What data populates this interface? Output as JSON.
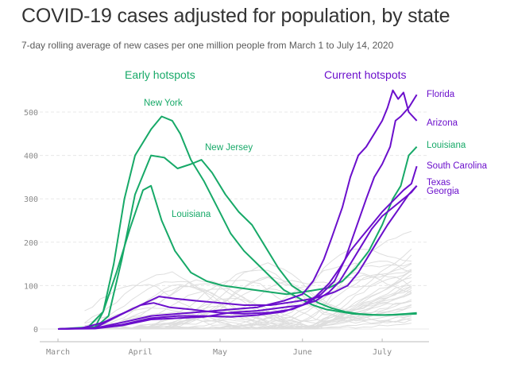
{
  "header": {
    "title": "COVID-19 cases adjusted for population, by state",
    "subtitle": "7-day rolling average of new cases per one million people from March 1 to July 14, 2020"
  },
  "groups": {
    "early": "Early hotspots",
    "current": "Current hotspots"
  },
  "colors": {
    "early": "#17a968",
    "current": "#6b0fcc",
    "background_states": "#dedede",
    "grid": "#e8e8e8",
    "axis": "#bbbbbb"
  },
  "chart_data": {
    "type": "line",
    "title": "COVID-19 cases adjusted for population, by state",
    "subtitle": "7-day rolling average of new cases per one million people from March 1 to July 14, 2020",
    "xlabel": "",
    "ylabel": "",
    "x_range": [
      "2020-03-01",
      "2020-07-14"
    ],
    "ylim": [
      0,
      550
    ],
    "y_ticks": [
      0,
      100,
      200,
      300,
      400,
      500
    ],
    "x_ticks": [
      {
        "date": "2020-03-01",
        "label": "March"
      },
      {
        "date": "2020-04-01",
        "label": "April"
      },
      {
        "date": "2020-05-01",
        "label": "May"
      },
      {
        "date": "2020-06-01",
        "label": "June"
      },
      {
        "date": "2020-07-01",
        "label": "July"
      }
    ],
    "grid": "horizontal dashed",
    "series": [
      {
        "name": "New York",
        "group": "early",
        "points": [
          [
            "2020-03-01",
            0
          ],
          [
            "2020-03-15",
            5
          ],
          [
            "2020-03-18",
            40
          ],
          [
            "2020-03-22",
            150
          ],
          [
            "2020-03-26",
            300
          ],
          [
            "2020-03-30",
            400
          ],
          [
            "2020-04-05",
            460
          ],
          [
            "2020-04-09",
            490
          ],
          [
            "2020-04-13",
            480
          ],
          [
            "2020-04-16",
            450
          ],
          [
            "2020-04-20",
            390
          ],
          [
            "2020-04-25",
            340
          ],
          [
            "2020-04-30",
            280
          ],
          [
            "2020-05-05",
            220
          ],
          [
            "2020-05-10",
            180
          ],
          [
            "2020-05-15",
            150
          ],
          [
            "2020-05-20",
            120
          ],
          [
            "2020-05-25",
            90
          ],
          [
            "2020-05-31",
            70
          ],
          [
            "2020-06-05",
            55
          ],
          [
            "2020-06-10",
            45
          ],
          [
            "2020-06-15",
            40
          ],
          [
            "2020-06-20",
            35
          ],
          [
            "2020-06-25",
            33
          ],
          [
            "2020-06-30",
            32
          ],
          [
            "2020-07-05",
            33
          ],
          [
            "2020-07-10",
            35
          ],
          [
            "2020-07-14",
            37
          ]
        ]
      },
      {
        "name": "New Jersey",
        "group": "early",
        "points": [
          [
            "2020-03-01",
            0
          ],
          [
            "2020-03-15",
            3
          ],
          [
            "2020-03-20",
            30
          ],
          [
            "2020-03-25",
            160
          ],
          [
            "2020-03-30",
            310
          ],
          [
            "2020-04-05",
            400
          ],
          [
            "2020-04-10",
            395
          ],
          [
            "2020-04-15",
            370
          ],
          [
            "2020-04-20",
            380
          ],
          [
            "2020-04-24",
            390
          ],
          [
            "2020-04-28",
            360
          ],
          [
            "2020-05-03",
            310
          ],
          [
            "2020-05-08",
            270
          ],
          [
            "2020-05-13",
            240
          ],
          [
            "2020-05-18",
            190
          ],
          [
            "2020-05-23",
            140
          ],
          [
            "2020-05-28",
            100
          ],
          [
            "2020-06-02",
            80
          ],
          [
            "2020-06-07",
            60
          ],
          [
            "2020-06-12",
            48
          ],
          [
            "2020-06-17",
            40
          ],
          [
            "2020-06-22",
            35
          ],
          [
            "2020-06-27",
            33
          ],
          [
            "2020-07-02",
            32
          ],
          [
            "2020-07-07",
            33
          ],
          [
            "2020-07-14",
            35
          ]
        ]
      },
      {
        "name": "Louisiana",
        "group": "early",
        "points": [
          [
            "2020-03-01",
            0
          ],
          [
            "2020-03-12",
            2
          ],
          [
            "2020-03-18",
            40
          ],
          [
            "2020-03-23",
            130
          ],
          [
            "2020-03-28",
            230
          ],
          [
            "2020-04-02",
            320
          ],
          [
            "2020-04-05",
            330
          ],
          [
            "2020-04-09",
            250
          ],
          [
            "2020-04-14",
            180
          ],
          [
            "2020-04-20",
            130
          ],
          [
            "2020-04-26",
            110
          ],
          [
            "2020-05-02",
            100
          ],
          [
            "2020-05-08",
            95
          ],
          [
            "2020-05-14",
            90
          ],
          [
            "2020-05-20",
            85
          ],
          [
            "2020-05-26",
            80
          ],
          [
            "2020-06-01",
            85
          ],
          [
            "2020-06-06",
            90
          ],
          [
            "2020-06-11",
            95
          ],
          [
            "2020-06-16",
            110
          ],
          [
            "2020-06-21",
            140
          ],
          [
            "2020-06-26",
            180
          ],
          [
            "2020-07-01",
            240
          ],
          [
            "2020-07-05",
            300
          ],
          [
            "2020-07-08",
            330
          ],
          [
            "2020-07-11",
            400
          ],
          [
            "2020-07-14",
            420
          ]
        ]
      },
      {
        "name": "Florida",
        "group": "current",
        "points": [
          [
            "2020-03-01",
            0
          ],
          [
            "2020-03-10",
            2
          ],
          [
            "2020-03-18",
            15
          ],
          [
            "2020-03-25",
            35
          ],
          [
            "2020-04-01",
            55
          ],
          [
            "2020-04-06",
            60
          ],
          [
            "2020-04-12",
            50
          ],
          [
            "2020-04-20",
            45
          ],
          [
            "2020-04-30",
            38
          ],
          [
            "2020-05-10",
            35
          ],
          [
            "2020-05-20",
            38
          ],
          [
            "2020-05-28",
            45
          ],
          [
            "2020-06-03",
            60
          ],
          [
            "2020-06-08",
            80
          ],
          [
            "2020-06-13",
            110
          ],
          [
            "2020-06-17",
            160
          ],
          [
            "2020-06-21",
            230
          ],
          [
            "2020-06-25",
            300
          ],
          [
            "2020-06-28",
            350
          ],
          [
            "2020-07-01",
            380
          ],
          [
            "2020-07-04",
            420
          ],
          [
            "2020-07-06",
            480
          ],
          [
            "2020-07-08",
            490
          ],
          [
            "2020-07-11",
            510
          ],
          [
            "2020-07-14",
            540
          ]
        ]
      },
      {
        "name": "Arizona",
        "group": "current",
        "points": [
          [
            "2020-03-01",
            0
          ],
          [
            "2020-03-15",
            2
          ],
          [
            "2020-03-25",
            15
          ],
          [
            "2020-04-05",
            30
          ],
          [
            "2020-04-15",
            35
          ],
          [
            "2020-04-25",
            40
          ],
          [
            "2020-05-05",
            45
          ],
          [
            "2020-05-15",
            50
          ],
          [
            "2020-05-25",
            65
          ],
          [
            "2020-06-01",
            80
          ],
          [
            "2020-06-05",
            110
          ],
          [
            "2020-06-09",
            160
          ],
          [
            "2020-06-12",
            210
          ],
          [
            "2020-06-16",
            280
          ],
          [
            "2020-06-19",
            350
          ],
          [
            "2020-06-22",
            400
          ],
          [
            "2020-06-25",
            420
          ],
          [
            "2020-06-28",
            450
          ],
          [
            "2020-07-01",
            480
          ],
          [
            "2020-07-03",
            510
          ],
          [
            "2020-07-05",
            550
          ],
          [
            "2020-07-07",
            530
          ],
          [
            "2020-07-09",
            545
          ],
          [
            "2020-07-11",
            500
          ],
          [
            "2020-07-14",
            480
          ]
        ]
      },
      {
        "name": "South Carolina",
        "group": "current",
        "points": [
          [
            "2020-03-01",
            0
          ],
          [
            "2020-03-15",
            2
          ],
          [
            "2020-03-25",
            10
          ],
          [
            "2020-04-05",
            25
          ],
          [
            "2020-04-15",
            30
          ],
          [
            "2020-04-25",
            30
          ],
          [
            "2020-05-05",
            28
          ],
          [
            "2020-05-15",
            32
          ],
          [
            "2020-05-25",
            40
          ],
          [
            "2020-06-01",
            55
          ],
          [
            "2020-06-06",
            75
          ],
          [
            "2020-06-11",
            105
          ],
          [
            "2020-06-15",
            140
          ],
          [
            "2020-06-19",
            180
          ],
          [
            "2020-06-23",
            210
          ],
          [
            "2020-06-27",
            240
          ],
          [
            "2020-07-01",
            270
          ],
          [
            "2020-07-05",
            295
          ],
          [
            "2020-07-09",
            320
          ],
          [
            "2020-07-12",
            335
          ],
          [
            "2020-07-14",
            375
          ]
        ]
      },
      {
        "name": "Texas",
        "group": "current",
        "points": [
          [
            "2020-03-01",
            0
          ],
          [
            "2020-03-15",
            1
          ],
          [
            "2020-03-25",
            8
          ],
          [
            "2020-04-05",
            22
          ],
          [
            "2020-04-15",
            25
          ],
          [
            "2020-04-25",
            28
          ],
          [
            "2020-05-05",
            38
          ],
          [
            "2020-05-15",
            42
          ],
          [
            "2020-05-25",
            50
          ],
          [
            "2020-06-01",
            55
          ],
          [
            "2020-06-06",
            65
          ],
          [
            "2020-06-11",
            85
          ],
          [
            "2020-06-15",
            110
          ],
          [
            "2020-06-19",
            150
          ],
          [
            "2020-06-23",
            190
          ],
          [
            "2020-06-27",
            230
          ],
          [
            "2020-07-01",
            260
          ],
          [
            "2020-07-05",
            280
          ],
          [
            "2020-07-09",
            300
          ],
          [
            "2020-07-12",
            315
          ],
          [
            "2020-07-14",
            330
          ]
        ]
      },
      {
        "name": "Georgia",
        "group": "current",
        "points": [
          [
            "2020-03-01",
            0
          ],
          [
            "2020-03-15",
            3
          ],
          [
            "2020-03-22",
            25
          ],
          [
            "2020-04-01",
            55
          ],
          [
            "2020-04-08",
            75
          ],
          [
            "2020-04-14",
            70
          ],
          [
            "2020-04-22",
            65
          ],
          [
            "2020-05-01",
            60
          ],
          [
            "2020-05-10",
            55
          ],
          [
            "2020-05-20",
            55
          ],
          [
            "2020-05-28",
            62
          ],
          [
            "2020-06-03",
            68
          ],
          [
            "2020-06-08",
            75
          ],
          [
            "2020-06-13",
            85
          ],
          [
            "2020-06-18",
            100
          ],
          [
            "2020-06-22",
            130
          ],
          [
            "2020-06-26",
            170
          ],
          [
            "2020-06-30",
            210
          ],
          [
            "2020-07-03",
            240
          ],
          [
            "2020-07-07",
            275
          ],
          [
            "2020-07-11",
            310
          ],
          [
            "2020-07-14",
            330
          ]
        ]
      }
    ]
  }
}
